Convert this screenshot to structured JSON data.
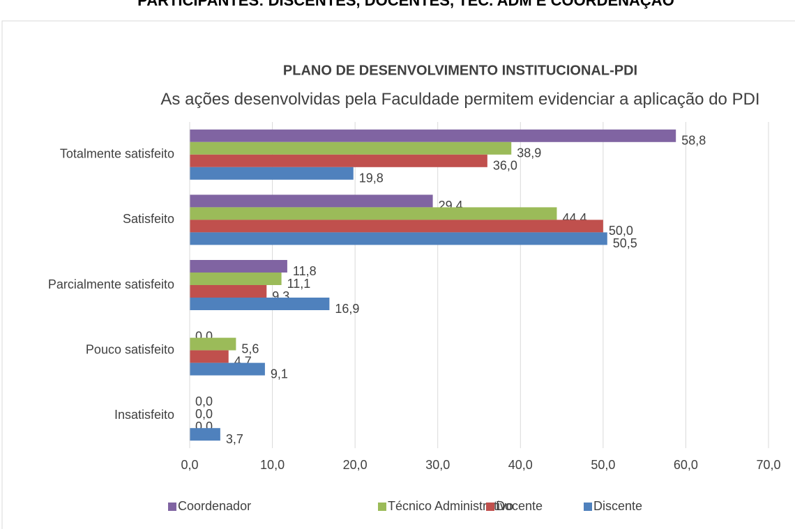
{
  "header": {
    "title": "PARTICIPANTES: DISCENTES, DOCENTES, TEC. ADM E COORDENAÇÃO"
  },
  "chart_data": {
    "type": "bar",
    "orientation": "horizontal",
    "title": "PLANO DE DESENVOLVIMENTO INSTITUCIONAL-PDI",
    "subtitle": "As ações desenvolvidas pela Faculdade permitem evidenciar a aplicação do PDI",
    "categories": [
      "Totalmente satisfeito",
      "Satisfeito",
      "Parcialmente satisfeito",
      "Pouco satisfeito",
      "Insatisfeito"
    ],
    "series": [
      {
        "name": "Coordenador",
        "color": "#8064a2",
        "values": [
          58.8,
          29.4,
          11.8,
          0,
          0
        ],
        "value_labels": [
          "58,8",
          "29,4",
          "11,8",
          "0,0",
          "0,0"
        ]
      },
      {
        "name": "Técnico Administrativo",
        "color": "#9bbb59",
        "values": [
          38.9,
          44.4,
          11.1,
          5.6,
          0
        ],
        "value_labels": [
          "38,9",
          "44,4",
          "11,1",
          "5,6",
          "0,0"
        ]
      },
      {
        "name": "Docente",
        "color": "#c0504d",
        "values": [
          36.0,
          50.0,
          9.3,
          4.7,
          0
        ],
        "value_labels": [
          "36,0",
          "50,0",
          "9,3",
          "4,7",
          "0,0"
        ]
      },
      {
        "name": "Discente",
        "color": "#4f81bd",
        "values": [
          19.8,
          50.5,
          16.9,
          9.1,
          3.7
        ],
        "value_labels": [
          "19,8",
          "50,5",
          "16,9",
          "9,1",
          "3,7"
        ]
      }
    ],
    "xlim": [
      0,
      70
    ],
    "xticks": [
      {
        "value": 0,
        "label": "0,0"
      },
      {
        "value": 10,
        "label": "10,0"
      },
      {
        "value": 20,
        "label": "20,0"
      },
      {
        "value": 30,
        "label": "30,0"
      },
      {
        "value": 40,
        "label": "40,0"
      },
      {
        "value": 50,
        "label": "50,0"
      },
      {
        "value": 60,
        "label": "60,0"
      },
      {
        "value": 70,
        "label": "70,0"
      }
    ],
    "grid": true,
    "legend": "bottom"
  }
}
